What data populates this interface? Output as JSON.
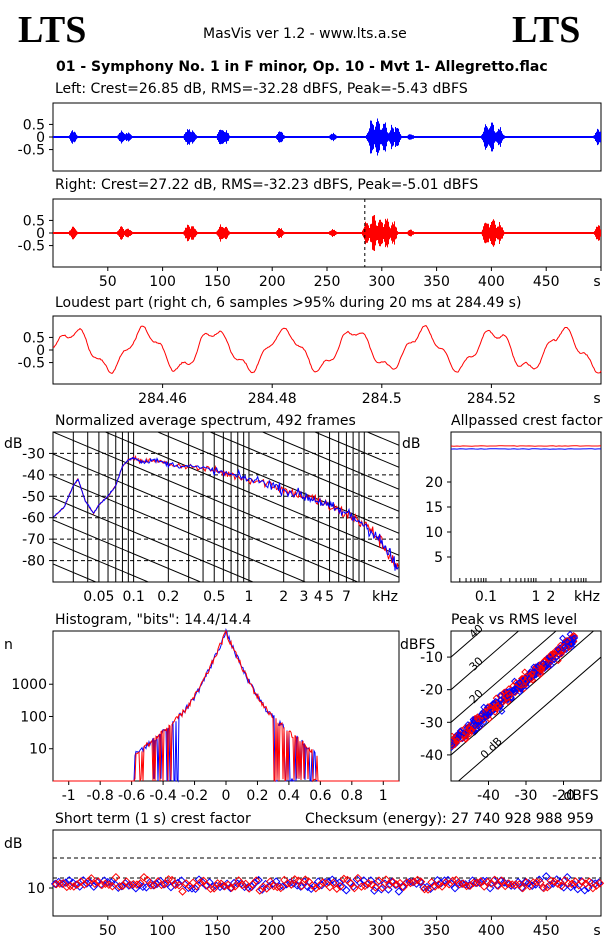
{
  "header": {
    "logo_left": "LTS",
    "logo_right": "LTS",
    "app": "MasVis ver 1.2 - www.lts.a.se",
    "file": "01 - Symphony No. 1 in F minor, Op. 10 - Mvt 1- Allegretto.flac"
  },
  "colors": {
    "left": "#0000ff",
    "right": "#ff0000",
    "axis": "#000000"
  },
  "labels": {
    "left": "Left: Crest=26.85 dB, RMS=-32.28 dBFS, Peak=-5.43 dBFS",
    "right": "Right: Crest=27.22 dB, RMS=-32.23 dBFS, Peak=-5.01 dBFS",
    "loudest": "Loudest part (right ch, 6 samples >95% during 20 ms at 284.49 s)",
    "spectrum": "Normalized average spectrum, 492 frames",
    "allpass": "Allpassed crest factor",
    "histogram": "Histogram, \"bits\": 14.4/14.4",
    "peakrms": "Peak vs RMS level",
    "shortterm": "Short term (1 s) crest factor",
    "checksum": "Checksum (energy):   27 740 928 988 959"
  },
  "chart_data": [
    {
      "name": "left-waveform",
      "type": "line",
      "ylim": [
        -1,
        1
      ],
      "yticks": [
        "0.5",
        "0",
        "-0.5"
      ],
      "xlim": [
        0,
        500
      ],
      "bursts": [
        [
          18,
          0.3
        ],
        [
          62,
          0.28
        ],
        [
          68,
          0.22
        ],
        [
          123,
          0.4
        ],
        [
          127,
          0.3
        ],
        [
          153,
          0.4
        ],
        [
          157,
          0.3
        ],
        [
          207,
          0.26
        ],
        [
          255,
          0.18
        ],
        [
          290,
          0.7
        ],
        [
          296,
          0.75
        ],
        [
          302,
          0.65
        ],
        [
          309,
          0.5
        ],
        [
          313,
          0.45
        ],
        [
          326,
          0.15
        ],
        [
          395,
          0.55
        ],
        [
          400,
          0.6
        ],
        [
          407,
          0.45
        ],
        [
          497,
          0.35
        ]
      ]
    },
    {
      "name": "right-waveform",
      "type": "line",
      "ylim": [
        -1,
        1
      ],
      "yticks": [
        "0.5",
        "0",
        "-0.5"
      ],
      "xlim": [
        0,
        500
      ],
      "marker_x": 284.49,
      "xticks": [
        "50",
        "100",
        "150",
        "200",
        "250",
        "300",
        "350",
        "400",
        "450",
        "s"
      ],
      "bursts": [
        [
          18,
          0.3
        ],
        [
          62,
          0.28
        ],
        [
          68,
          0.22
        ],
        [
          123,
          0.4
        ],
        [
          127,
          0.3
        ],
        [
          153,
          0.4
        ],
        [
          157,
          0.3
        ],
        [
          207,
          0.26
        ],
        [
          255,
          0.18
        ],
        [
          286,
          0.55
        ],
        [
          292,
          0.8
        ],
        [
          298,
          0.8
        ],
        [
          304,
          0.7
        ],
        [
          310,
          0.55
        ],
        [
          326,
          0.15
        ],
        [
          395,
          0.55
        ],
        [
          401,
          0.65
        ],
        [
          407,
          0.45
        ],
        [
          497,
          0.35
        ]
      ]
    },
    {
      "name": "loudest-part",
      "type": "line",
      "xlim": [
        284.44,
        284.54
      ],
      "ylim": [
        -1,
        1
      ],
      "yticks": [
        "0.5",
        "0",
        "-0.5"
      ],
      "xticks": [
        "284.46",
        "284.48",
        "284.5",
        "284.52",
        "s"
      ]
    },
    {
      "name": "spectrum",
      "type": "line",
      "ylabel": "dB",
      "yticks": [
        "-30",
        "-40",
        "-50",
        "-60",
        "-70",
        "-80"
      ],
      "xticks": [
        "0.05",
        "0.1",
        "0.2",
        "0.5",
        "1",
        "2",
        "3",
        "4",
        "5",
        "7",
        "kHz"
      ],
      "xlim_khz": [
        0.02,
        20
      ],
      "ylim": [
        -90,
        -20
      ],
      "points": [
        [
          0.02,
          -60
        ],
        [
          0.025,
          -55
        ],
        [
          0.03,
          -45
        ],
        [
          0.033,
          -42
        ],
        [
          0.038,
          -52
        ],
        [
          0.045,
          -58
        ],
        [
          0.05,
          -54
        ],
        [
          0.06,
          -50
        ],
        [
          0.07,
          -45
        ],
        [
          0.08,
          -36
        ],
        [
          0.09,
          -33
        ],
        [
          0.1,
          -32
        ],
        [
          0.12,
          -34
        ],
        [
          0.15,
          -33
        ],
        [
          0.2,
          -35
        ],
        [
          0.3,
          -36
        ],
        [
          0.5,
          -38
        ],
        [
          0.7,
          -40
        ],
        [
          1,
          -42
        ],
        [
          1.5,
          -44
        ],
        [
          2,
          -47
        ],
        [
          3,
          -50
        ],
        [
          4,
          -52
        ],
        [
          5,
          -55
        ],
        [
          7,
          -58
        ],
        [
          10,
          -63
        ],
        [
          13,
          -69
        ],
        [
          16,
          -76
        ],
        [
          20,
          -85
        ]
      ]
    },
    {
      "name": "allpassed-crest",
      "type": "line",
      "ylabel": "dB",
      "yticks": [
        "20",
        "15",
        "10",
        "5"
      ],
      "xticks": [
        "0.1",
        "1",
        "2",
        "kHz"
      ],
      "ylim": [
        0,
        30
      ],
      "left_value": 27.0,
      "right_value": 27.2
    },
    {
      "name": "histogram",
      "type": "line",
      "ylabel": "n",
      "yticks": [
        "1000",
        "100",
        "10"
      ],
      "xticks": [
        "-1",
        "-0.8",
        "-0.6",
        "-0.4",
        "-0.2",
        "0",
        "0.2",
        "0.4",
        "0.6",
        "0.8",
        "1"
      ],
      "xlim": [
        -1.1,
        1.1
      ]
    },
    {
      "name": "peak-vs-rms",
      "type": "scatter",
      "ylabel": "dBFS",
      "yticks": [
        "-10",
        "-20",
        "-30",
        "-40"
      ],
      "xticks": [
        "-40",
        "-30",
        "-20",
        "dBFS"
      ],
      "diag_labels": [
        "40",
        "30",
        "20",
        "10",
        "0 dB"
      ],
      "xlim": [
        -50,
        -10
      ],
      "ylim": [
        -48,
        -2
      ]
    },
    {
      "name": "short-term-crest",
      "type": "scatter",
      "ylabel": "dB",
      "yticks": [
        "10"
      ],
      "xticks": [
        "50",
        "100",
        "150",
        "200",
        "250",
        "300",
        "350",
        "400",
        "450",
        "s"
      ],
      "xlim": [
        0,
        500
      ],
      "ylim": [
        0,
        25
      ]
    }
  ]
}
